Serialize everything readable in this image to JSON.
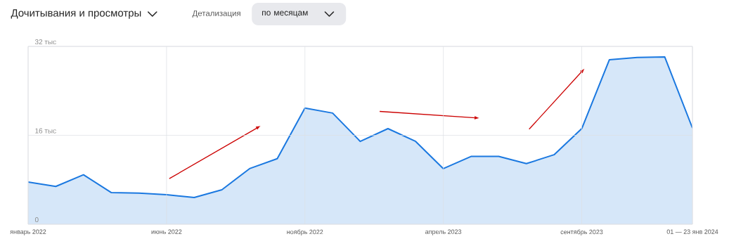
{
  "chart_data": {
    "type": "area",
    "title": "Дочитывания и просмотры",
    "annotations": [
      "Детализация",
      "по месяцам"
    ],
    "categories": [
      "январь 2022",
      null,
      null,
      null,
      null,
      "июнь 2022",
      null,
      null,
      null,
      null,
      "ноябрь 2022",
      null,
      null,
      null,
      null,
      "апрель 2023",
      null,
      null,
      null,
      null,
      "сентябрь 2023",
      null,
      null,
      null,
      "01 — 23 янв 2024"
    ],
    "series": [
      {
        "color": "#1a78e0",
        "values": [
          7.6,
          6.8,
          8.9,
          5.7,
          5.6,
          5.3,
          4.8,
          6.2,
          10.0,
          11.8,
          20.9,
          20.0,
          14.9,
          17.2,
          14.9,
          10.0,
          12.2,
          12.2,
          10.9,
          12.5,
          17.2,
          29.6,
          30.0,
          30.1,
          17.3
        ]
      }
    ],
    "ylim": [
      0,
      32
    ],
    "yticks": [
      0,
      {
        "value": 16,
        "label": "16 тыс"
      },
      {
        "value": 32,
        "label": "32 тыс"
      }
    ],
    "grid": true,
    "marker": "none",
    "line_style": "solid"
  }
}
